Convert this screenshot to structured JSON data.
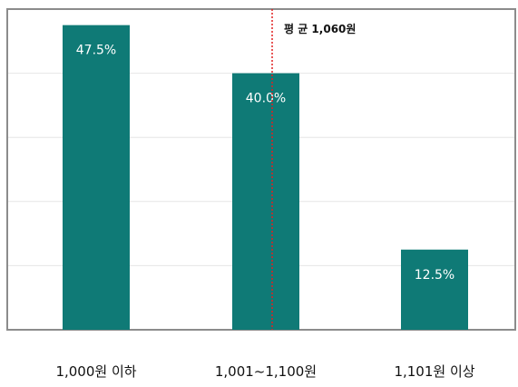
{
  "chart_data": {
    "type": "bar",
    "title": "",
    "xlabel": "",
    "ylabel": "",
    "categories": [
      "1,000원 이하",
      "1,001~1,100원",
      "1,101원 이상"
    ],
    "values": [
      47.5,
      40.0,
      12.5
    ],
    "data_labels": [
      "47.5%",
      "40.0%",
      "12.5%"
    ],
    "unit": "%",
    "ylim": [
      0,
      50
    ],
    "grid": true,
    "bar_color": "#0f7a76",
    "reference_line": {
      "label": "평 균 1,060원",
      "value": 1060,
      "color": "#e02020",
      "style": "dotted"
    }
  }
}
